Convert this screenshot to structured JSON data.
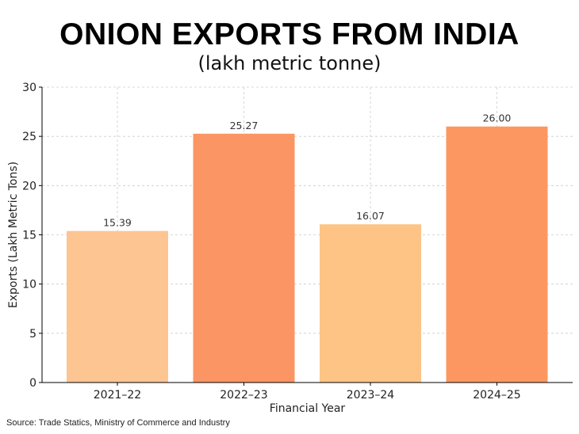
{
  "title": "ONION EXPORTS FROM INDIA",
  "subtitle": "(lakh metric tonne)",
  "source": "Source: Trade Statics, Ministry of Commerce and Industry",
  "chart_data": {
    "type": "bar",
    "categories": [
      "2021–22",
      "2022–23",
      "2023–24",
      "2024–25"
    ],
    "values": [
      15.39,
      25.27,
      16.07,
      26.0
    ],
    "data_labels": [
      "15.39",
      "25.27",
      "16.07",
      "26.00"
    ],
    "xlabel": "Financial Year",
    "ylabel": "Exports (Lakh Metric Tons)",
    "ylim": [
      0,
      30
    ],
    "yticks": [
      0,
      5,
      10,
      15,
      20,
      25,
      30
    ],
    "grid": true,
    "bar_colors": [
      "#fdc591",
      "#fb9563",
      "#fdc486",
      "#fd9762"
    ]
  }
}
